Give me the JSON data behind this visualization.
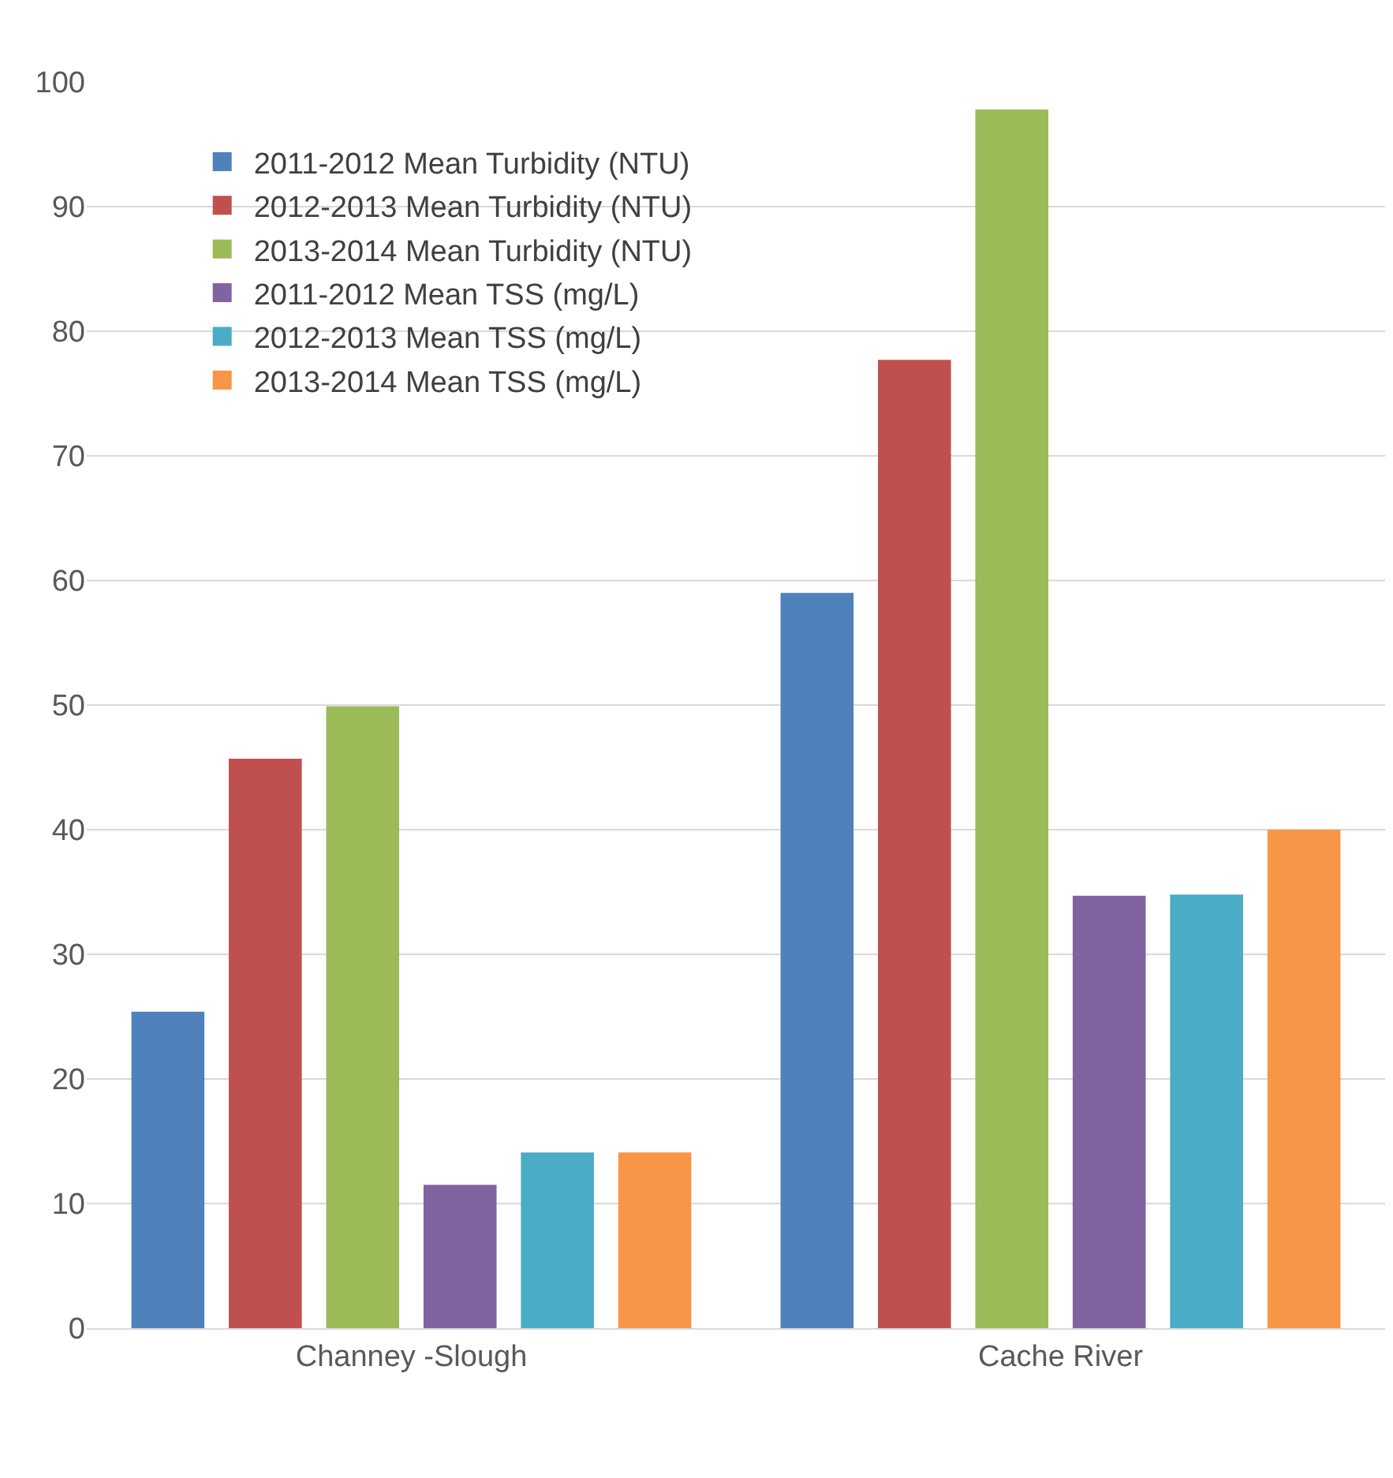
{
  "chart_data": {
    "type": "bar",
    "categories": [
      "Channey -Slough",
      "Cache River"
    ],
    "series": [
      {
        "name": "2011-2012 Mean Turbidity (NTU)",
        "color": "#4f81bd",
        "values": [
          25.4,
          59.0
        ]
      },
      {
        "name": "2012-2013 Mean Turbidity (NTU)",
        "color": "#c0504d",
        "values": [
          45.7,
          77.7
        ]
      },
      {
        "name": "2013-2014 Mean Turbidity (NTU)",
        "color": "#9bbb59",
        "values": [
          49.9,
          97.8
        ]
      },
      {
        "name": "2011-2012 Mean TSS (mg/L)",
        "color": "#8064a2",
        "values": [
          11.5,
          34.7
        ]
      },
      {
        "name": "2012-2013 Mean TSS (mg/L)",
        "color": "#4bacc6",
        "values": [
          14.1,
          34.8
        ]
      },
      {
        "name": "2013-2014 Mean TSS (mg/L)",
        "color": "#f79646",
        "values": [
          14.1,
          40.0
        ]
      }
    ],
    "ylim": [
      0,
      100
    ],
    "yticks": [
      0,
      10,
      20,
      30,
      40,
      50,
      60,
      70,
      80,
      90,
      100
    ],
    "grid": "y",
    "legend": "top left"
  }
}
